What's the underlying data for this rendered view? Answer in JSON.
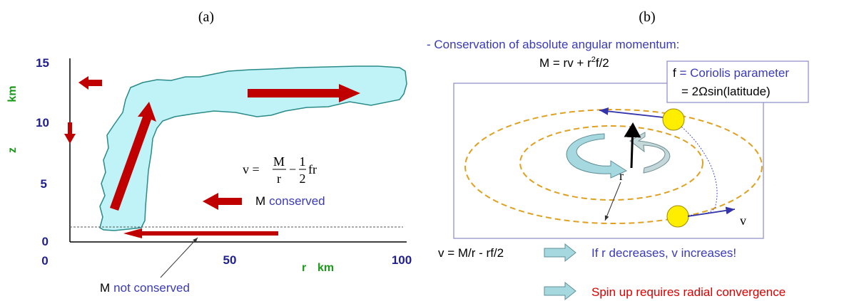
{
  "panel_a": {
    "label": "(a)",
    "y_axis": {
      "label_z": "z",
      "label_unit": "km",
      "ticks": [
        "0",
        "5",
        "10",
        "15"
      ]
    },
    "x_axis": {
      "label_r": "r",
      "label_unit": "km",
      "ticks": [
        "0",
        "50",
        "100"
      ]
    },
    "equation": {
      "lhs": "v =",
      "num1": "M",
      "den1": "r",
      "minus": "−",
      "num2": "1",
      "den2": "2",
      "tail": "fr"
    },
    "m_conserved": {
      "m": "M",
      "text": "conserved"
    },
    "m_not_conserved": {
      "m": "M",
      "text": "not conserved"
    },
    "colors": {
      "cloud": "#bff3f7",
      "arrow": "#c00000",
      "tick": "#1f1f8f",
      "axis_label": "#1a9a1a"
    }
  },
  "panel_b": {
    "label": "(b)",
    "title": "- Conservation of absolute angular momentum:",
    "momentum_eq": {
      "main": "M = rv + r",
      "sup": "2",
      "tail": "f/2"
    },
    "coriolis": {
      "line1_f": "f",
      "line1_rest": " = Coriolis parameter",
      "line2": "= 2Ωsin(latitude)"
    },
    "r_label": "r",
    "v_label": "v",
    "v_eq": "v = M/r - rf/2",
    "result1": "If r decreases, v increases!",
    "result2": "Spin up requires radial convergence",
    "colors": {
      "blue_text": "#3a3ab8",
      "red_text": "#dd0000",
      "ellipse": "#e0a020",
      "ball": "#ffee00"
    }
  }
}
